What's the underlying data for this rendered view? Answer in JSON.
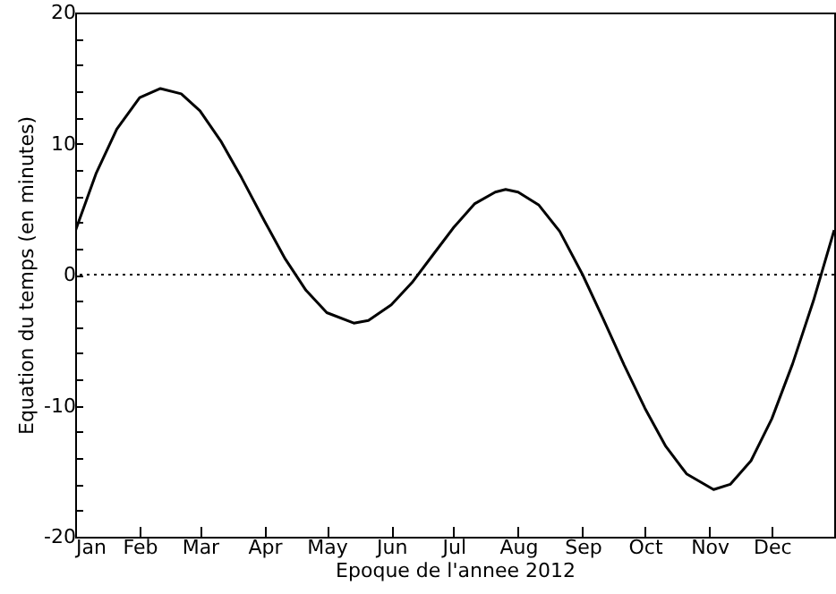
{
  "chart_data": {
    "type": "line",
    "xlabel": "Epoque de l'annee 2012",
    "ylabel": "Equation du temps (en minutes)",
    "x": [
      "2012-01-01",
      "2012-01-11",
      "2012-01-21",
      "2012-02-01",
      "2012-02-11",
      "2012-02-21",
      "2012-03-01",
      "2012-03-11",
      "2012-03-21",
      "2012-04-01",
      "2012-04-11",
      "2012-04-21",
      "2012-05-01",
      "2012-05-14",
      "2012-05-21",
      "2012-06-01",
      "2012-06-11",
      "2012-06-21",
      "2012-07-01",
      "2012-07-11",
      "2012-07-21",
      "2012-07-26",
      "2012-08-01",
      "2012-08-11",
      "2012-08-21",
      "2012-09-01",
      "2012-09-11",
      "2012-09-21",
      "2012-10-01",
      "2012-10-11",
      "2012-10-21",
      "2012-11-03",
      "2012-11-11",
      "2012-11-21",
      "2012-12-01",
      "2012-12-11",
      "2012-12-21",
      "2012-12-31"
    ],
    "series": [
      {
        "color": "#000000",
        "values": [
          3.3,
          7.7,
          11.1,
          13.5,
          14.2,
          13.8,
          12.5,
          10.2,
          7.4,
          4.1,
          1.2,
          -1.2,
          -2.9,
          -3.7,
          -3.5,
          -2.3,
          -0.6,
          1.5,
          3.6,
          5.4,
          6.3,
          6.5,
          6.3,
          5.3,
          3.3,
          0,
          -3.4,
          -6.9,
          -10.2,
          -13.1,
          -15.2,
          -16.4,
          -16.0,
          -14.2,
          -11.0,
          -6.8,
          -2.0,
          3.4
        ]
      }
    ],
    "xlim": [
      "2012-01-01",
      "2012-12-31"
    ],
    "xticks": [
      {
        "value": "2012-01-01",
        "label": "Jan"
      },
      {
        "value": "2012-02-01",
        "label": "Feb"
      },
      {
        "value": "2012-03-01",
        "label": "Mar"
      },
      {
        "value": "2012-04-01",
        "label": "Apr"
      },
      {
        "value": "2012-05-01",
        "label": "May"
      },
      {
        "value": "2012-06-01",
        "label": "Jun"
      },
      {
        "value": "2012-07-01",
        "label": "Jul"
      },
      {
        "value": "2012-08-01",
        "label": "Aug"
      },
      {
        "value": "2012-09-01",
        "label": "Sep"
      },
      {
        "value": "2012-10-01",
        "label": "Oct"
      },
      {
        "value": "2012-11-01",
        "label": "Nov"
      },
      {
        "value": "2012-12-01",
        "label": "Dec"
      }
    ],
    "ylim": [
      -20,
      20
    ],
    "yticks": [
      -20,
      {
        "value": -18,
        "label": null
      },
      {
        "value": -16,
        "label": null
      },
      {
        "value": -14,
        "label": null
      },
      {
        "value": -12,
        "label": null
      },
      -10,
      {
        "value": -8,
        "label": null
      },
      {
        "value": -6,
        "label": null
      },
      {
        "value": -4,
        "label": null
      },
      {
        "value": -2,
        "label": null
      },
      0,
      {
        "value": 2,
        "label": null
      },
      {
        "value": 4,
        "label": null
      },
      {
        "value": 6,
        "label": null
      },
      {
        "value": 8,
        "label": null
      },
      10,
      {
        "value": 12,
        "label": null
      },
      {
        "value": 14,
        "label": null
      },
      {
        "value": 16,
        "label": null
      },
      {
        "value": 18,
        "label": null
      },
      20
    ],
    "ref_lines": [
      {
        "axis": "y",
        "value": 0,
        "line_style": "dotted",
        "color": "#000000"
      }
    ],
    "grid": false
  }
}
